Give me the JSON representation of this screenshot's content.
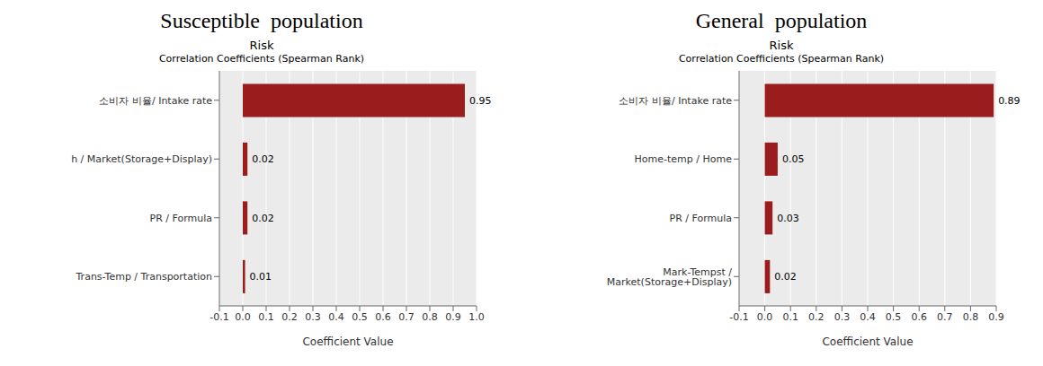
{
  "chart_data": [
    {
      "type": "bar",
      "orientation": "horizontal",
      "title": "Susceptible  population",
      "subtitle": "Risk",
      "annotations": [
        "Correlation Coefficients (Spearman Rank)"
      ],
      "categories": [
        "Trans-Temp / Transportation",
        "PR / Formula",
        "h / Market(Storage+Display)",
        "소비자 비율/ Intake rate"
      ],
      "values": [
        0.01,
        0.02,
        0.02,
        0.95
      ],
      "xlim": [
        -0.1,
        1.0
      ],
      "xticks": [
        -0.1,
        {
          "value": 0.0,
          "label": "0.0"
        },
        0.1,
        0.2,
        0.3,
        0.4,
        0.5,
        0.6,
        0.7,
        0.8,
        0.9,
        {
          "value": 1.0,
          "label": "1.0"
        }
      ],
      "xlabel": "Coefficient Value",
      "color": "#9B1C1C",
      "grid": true,
      "data_labels": true
    },
    {
      "type": "bar",
      "orientation": "horizontal",
      "title": "General  population",
      "subtitle": "Risk",
      "annotations": [
        "Correlation Coefficients (Spearman Rank)"
      ],
      "categories": [
        "Mark-Tempst / Market(Storage+Display)",
        "PR / Formula",
        "Home-temp / Home",
        "소비자 비율/ Intake rate"
      ],
      "values": [
        0.02,
        0.03,
        0.05,
        0.89
      ],
      "xlim": [
        -0.1,
        0.9
      ],
      "xticks": [
        -0.1,
        {
          "value": 0.0,
          "label": "0.0"
        },
        0.1,
        0.2,
        0.3,
        0.4,
        0.5,
        0.6,
        0.7,
        0.8,
        0.9
      ],
      "xlabel": "Coefficient Value",
      "color": "#9B1C1C",
      "grid": true,
      "data_labels": true
    }
  ]
}
